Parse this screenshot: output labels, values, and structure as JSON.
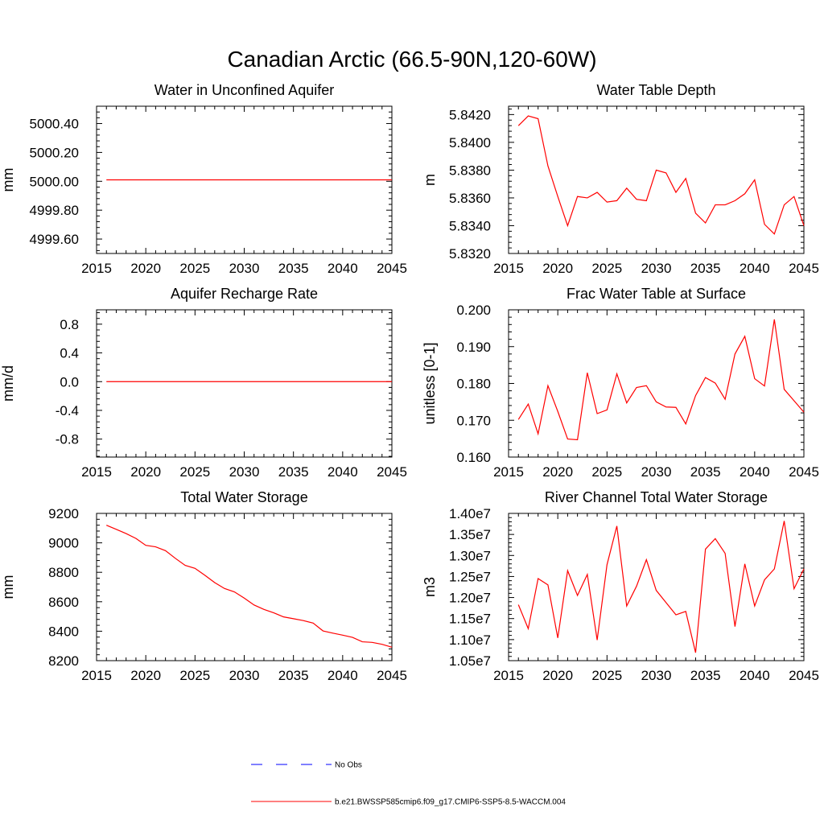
{
  "figure": {
    "title": "Canadian Arctic (66.5-90N,120-60W)"
  },
  "legend": {
    "entries": [
      {
        "label": "No Obs",
        "color": "#0000ff",
        "dash": "dashed"
      },
      {
        "label": "b.e21.BWSSP585cmip6.f09_g17.CMIP6-SSP5-8.5-WACCM.004",
        "color": "#ff0000",
        "dash": "solid"
      }
    ]
  },
  "chart_data": [
    {
      "type": "line",
      "title": "Water in Unconfined Aquifer",
      "ylabel": "mm",
      "xlim": [
        2015,
        2045
      ],
      "ylim": [
        4999.5,
        5000.52
      ],
      "xticks": [
        2015,
        2020,
        2025,
        2030,
        2035,
        2040,
        2045
      ],
      "yticks": [
        4999.6,
        4999.8,
        5000.0,
        5000.2,
        5000.4
      ],
      "ytick_labels": [
        "4999.60",
        "4999.80",
        "5000.00",
        "5000.20",
        "5000.40"
      ],
      "x": [
        2016,
        2017,
        2018,
        2019,
        2020,
        2021,
        2022,
        2023,
        2024,
        2025,
        2026,
        2027,
        2028,
        2029,
        2030,
        2031,
        2032,
        2033,
        2034,
        2035,
        2036,
        2037,
        2038,
        2039,
        2040,
        2041,
        2042,
        2043,
        2044,
        2045
      ],
      "series": [
        {
          "color": "#ff0000",
          "values": [
            5000.01,
            5000.01,
            5000.01,
            5000.01,
            5000.01,
            5000.01,
            5000.01,
            5000.01,
            5000.01,
            5000.01,
            5000.01,
            5000.01,
            5000.01,
            5000.01,
            5000.01,
            5000.01,
            5000.01,
            5000.01,
            5000.01,
            5000.01,
            5000.01,
            5000.01,
            5000.01,
            5000.01,
            5000.01,
            5000.01,
            5000.01,
            5000.01,
            5000.01,
            5000.01
          ]
        }
      ]
    },
    {
      "type": "line",
      "title": "Water Table Depth",
      "ylabel": "m",
      "xlim": [
        2015,
        2045
      ],
      "ylim": [
        5.832,
        5.8426
      ],
      "xticks": [
        2015,
        2020,
        2025,
        2030,
        2035,
        2040,
        2045
      ],
      "yticks": [
        5.832,
        5.834,
        5.836,
        5.838,
        5.84,
        5.842
      ],
      "ytick_labels": [
        "5.8320",
        "5.8340",
        "5.8360",
        "5.8380",
        "5.8400",
        "5.8420"
      ],
      "x": [
        2016,
        2017,
        2018,
        2019,
        2020,
        2021,
        2022,
        2023,
        2024,
        2025,
        2026,
        2027,
        2028,
        2029,
        2030,
        2031,
        2032,
        2033,
        2034,
        2035,
        2036,
        2037,
        2038,
        2039,
        2040,
        2041,
        2042,
        2043,
        2044,
        2045
      ],
      "series": [
        {
          "color": "#ff0000",
          "values": [
            5.8412,
            5.8419,
            5.8417,
            5.8383,
            5.8361,
            5.834,
            5.8361,
            5.836,
            5.8364,
            5.8357,
            5.8358,
            5.8367,
            5.8359,
            5.8358,
            5.838,
            5.8378,
            5.8364,
            5.8374,
            5.8349,
            5.8342,
            5.8355,
            5.8355,
            5.8358,
            5.8363,
            5.8373,
            5.8341,
            5.8334,
            5.8355,
            5.8361,
            5.834
          ]
        }
      ]
    },
    {
      "type": "line",
      "title": "Aquifer Recharge Rate",
      "ylabel": "mm/d",
      "xlim": [
        2015,
        2045
      ],
      "ylim": [
        -1.05,
        1.0
      ],
      "xticks": [
        2015,
        2020,
        2025,
        2030,
        2035,
        2040,
        2045
      ],
      "yticks": [
        -0.8,
        -0.4,
        0.0,
        0.4,
        0.8
      ],
      "ytick_labels": [
        "-0.8",
        "-0.4",
        "0.0",
        "0.4",
        "0.8"
      ],
      "x": [
        2016,
        2017,
        2018,
        2019,
        2020,
        2021,
        2022,
        2023,
        2024,
        2025,
        2026,
        2027,
        2028,
        2029,
        2030,
        2031,
        2032,
        2033,
        2034,
        2035,
        2036,
        2037,
        2038,
        2039,
        2040,
        2041,
        2042,
        2043,
        2044,
        2045
      ],
      "series": [
        {
          "color": "#ff0000",
          "values": [
            0,
            0,
            0,
            0,
            0,
            0,
            0,
            0,
            0,
            0,
            0,
            0,
            0,
            0,
            0,
            0,
            0,
            0,
            0,
            0,
            0,
            0,
            0,
            0,
            0,
            0,
            0,
            0,
            0,
            0
          ]
        }
      ]
    },
    {
      "type": "line",
      "title": "Frac Water Table at Surface",
      "ylabel": "unitless [0-1]",
      "xlim": [
        2015,
        2045
      ],
      "ylim": [
        0.16,
        0.2
      ],
      "xticks": [
        2015,
        2020,
        2025,
        2030,
        2035,
        2040,
        2045
      ],
      "yticks": [
        0.16,
        0.17,
        0.18,
        0.19,
        0.2
      ],
      "ytick_labels": [
        "0.160",
        "0.170",
        "0.180",
        "0.190",
        "0.200"
      ],
      "x": [
        2016,
        2017,
        2018,
        2019,
        2020,
        2021,
        2022,
        2023,
        2024,
        2025,
        2026,
        2027,
        2028,
        2029,
        2030,
        2031,
        2032,
        2033,
        2034,
        2035,
        2036,
        2037,
        2038,
        2039,
        2040,
        2041,
        2042,
        2043,
        2044,
        2045
      ],
      "series": [
        {
          "color": "#ff0000",
          "values": [
            0.1702,
            0.1744,
            0.1663,
            0.1794,
            0.1724,
            0.1649,
            0.1647,
            0.1829,
            0.1718,
            0.1728,
            0.1826,
            0.1747,
            0.1789,
            0.1794,
            0.175,
            0.1736,
            0.1735,
            0.169,
            0.1767,
            0.1816,
            0.1801,
            0.1757,
            0.188,
            0.1928,
            0.1813,
            0.1793,
            0.1974,
            0.1784,
            0.1753,
            0.1722
          ]
        }
      ]
    },
    {
      "type": "line",
      "title": "Total Water Storage",
      "ylabel": "mm",
      "xlim": [
        2015,
        2045
      ],
      "ylim": [
        8200,
        9200
      ],
      "xticks": [
        2015,
        2020,
        2025,
        2030,
        2035,
        2040,
        2045
      ],
      "yticks": [
        8200,
        8400,
        8600,
        8800,
        9000,
        9200
      ],
      "ytick_labels": [
        "8200",
        "8400",
        "8600",
        "8800",
        "9000",
        "9200"
      ],
      "x": [
        2016,
        2017,
        2018,
        2019,
        2020,
        2021,
        2022,
        2023,
        2024,
        2025,
        2026,
        2027,
        2028,
        2029,
        2030,
        2031,
        2032,
        2033,
        2034,
        2035,
        2036,
        2037,
        2038,
        2039,
        2040,
        2041,
        2042,
        2043,
        2044,
        2045
      ],
      "series": [
        {
          "color": "#ff0000",
          "values": [
            9120,
            9092,
            9063,
            9030,
            8983,
            8973,
            8947,
            8895,
            8847,
            8827,
            8780,
            8730,
            8690,
            8667,
            8625,
            8578,
            8548,
            8525,
            8497,
            8485,
            8472,
            8455,
            8402,
            8387,
            8373,
            8358,
            8328,
            8324,
            8311,
            8291
          ]
        }
      ]
    },
    {
      "type": "line",
      "title": "River Channel Total Water Storage",
      "ylabel": "m3",
      "xlim": [
        2015,
        2045
      ],
      "ylim": [
        10500000,
        14000000
      ],
      "xticks": [
        2015,
        2020,
        2025,
        2030,
        2035,
        2040,
        2045
      ],
      "yticks": [
        10500000,
        11000000,
        11500000,
        12000000,
        12500000,
        13000000,
        13500000,
        14000000
      ],
      "ytick_labels": [
        "1.05e7",
        "1.10e7",
        "1.15e7",
        "1.20e7",
        "1.25e7",
        "1.30e7",
        "1.35e7",
        "1.40e7"
      ],
      "x": [
        2016,
        2017,
        2018,
        2019,
        2020,
        2021,
        2022,
        2023,
        2024,
        2025,
        2026,
        2027,
        2028,
        2029,
        2030,
        2031,
        2032,
        2033,
        2034,
        2035,
        2036,
        2037,
        2038,
        2039,
        2040,
        2041,
        2042,
        2043,
        2044,
        2045
      ],
      "series": [
        {
          "color": "#ff0000",
          "values": [
            11830000,
            11260000,
            12450000,
            12300000,
            11040000,
            12640000,
            12050000,
            12550000,
            10990000,
            12780000,
            13700000,
            11800000,
            12270000,
            12900000,
            12170000,
            11880000,
            11590000,
            11670000,
            10690000,
            13150000,
            13400000,
            13050000,
            11310000,
            12800000,
            11800000,
            12420000,
            12680000,
            13820000,
            12210000,
            12680000
          ]
        }
      ]
    }
  ]
}
